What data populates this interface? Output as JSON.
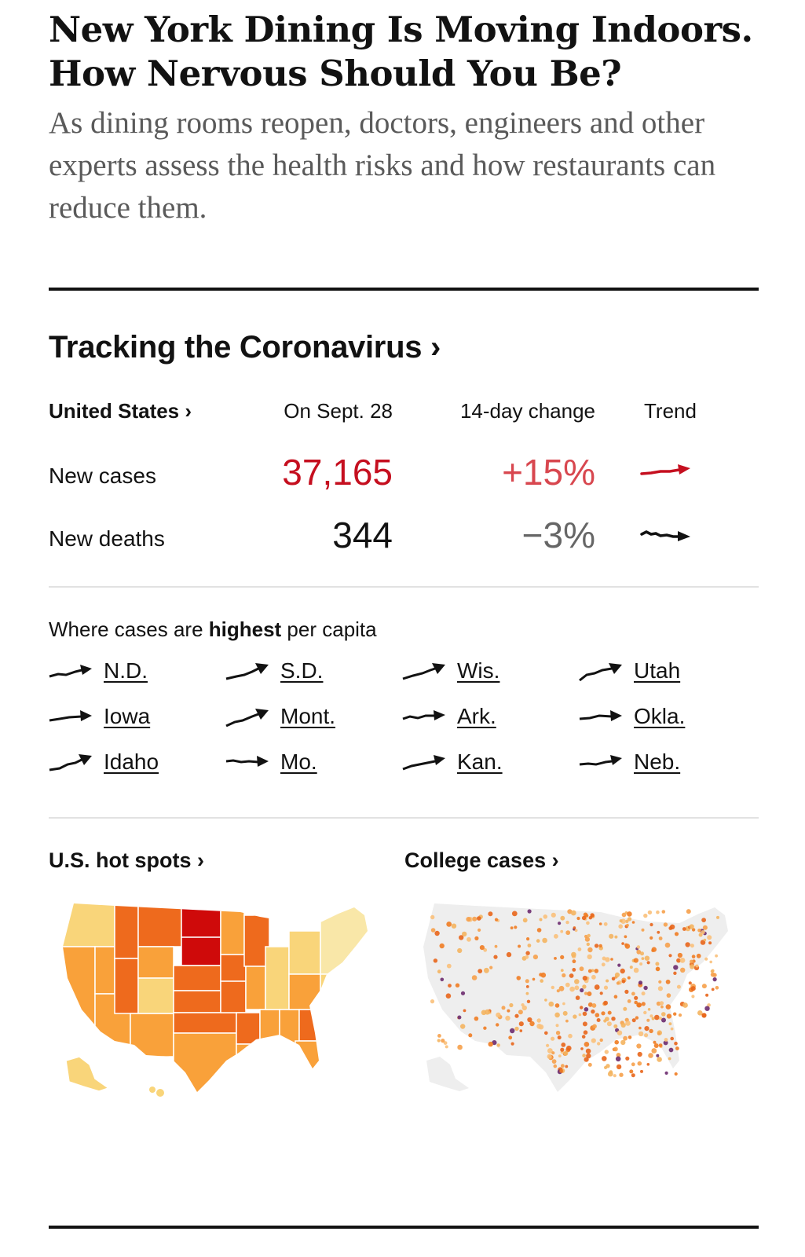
{
  "article": {
    "headline": "New York Dining Is Moving Indoors. How Nervous Should You Be?",
    "summary": "As dining rooms reopen, doctors, engineers and other experts assess the health risks and how restaurants can reduce them."
  },
  "tracker": {
    "title": "Tracking the Coronavirus ›",
    "columns": {
      "region": "United States ›",
      "date": "On Sept. 28",
      "change": "14-day change",
      "trend": "Trend"
    },
    "rows": [
      {
        "label": "New cases",
        "value": "37,165",
        "change": "+15%",
        "color": "#c50f1f",
        "change_color": "#d8474f"
      },
      {
        "label": "New deaths",
        "value": "344",
        "change": "−3%",
        "color": "#121212",
        "change_color": "#666666"
      }
    ],
    "highest_prefix": "Where cases are ",
    "highest_bold": "highest",
    "highest_suffix": " per capita",
    "states": [
      "N.D.",
      "S.D.",
      "Wis.",
      "Utah",
      "Iowa",
      "Mont.",
      "Ark.",
      "Okla.",
      "Idaho",
      "Mo.",
      "Kan.",
      "Neb."
    ],
    "hot_spots_link": "U.S. hot spots ›",
    "college_link": "College cases ›"
  },
  "colors": {
    "accent_red": "#c50f1f",
    "map_light": "#f9d57a",
    "map_mid": "#f9a13a",
    "map_dark": "#ee6a1d",
    "map_darkest": "#cf0a0a",
    "college_dot_purple": "#6b2a6e"
  }
}
